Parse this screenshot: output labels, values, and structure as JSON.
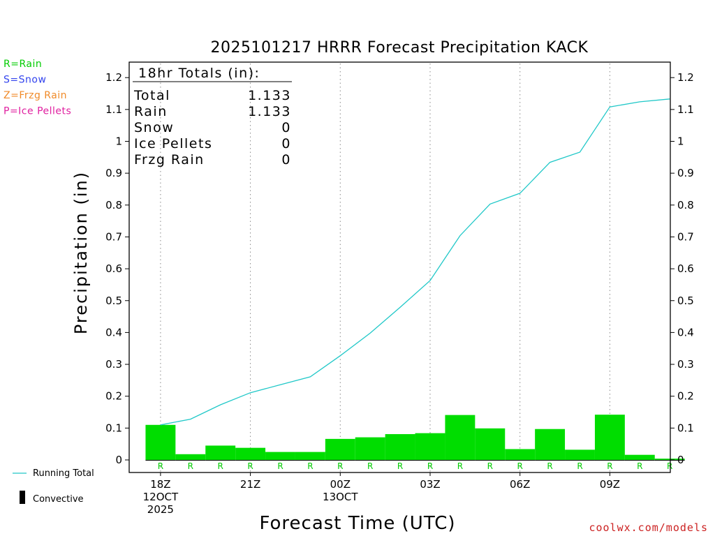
{
  "chart_data": {
    "type": "bar",
    "title": "2025101217 HRRR Forecast Precipitation KACK",
    "xlabel": "Forecast Time (UTC)",
    "ylabel": "Precipitation (in)",
    "ylim": [
      0,
      1.25
    ],
    "y_ticks": [
      "0",
      "0.1",
      "0.2",
      "0.3",
      "0.4",
      "0.5",
      "0.6",
      "0.7",
      "0.8",
      "0.9",
      "1",
      "1.1",
      "1.2"
    ],
    "x_ticks": [
      {
        "hour": 1,
        "lines": [
          "18Z",
          "12OCT",
          "2025"
        ]
      },
      {
        "hour": 4,
        "lines": [
          "21Z"
        ]
      },
      {
        "hour": 7,
        "lines": [
          "00Z",
          "13OCT"
        ]
      },
      {
        "hour": 10,
        "lines": [
          "03Z"
        ]
      },
      {
        "hour": 13,
        "lines": [
          "06Z"
        ]
      },
      {
        "hour": 16,
        "lines": [
          "09Z"
        ]
      }
    ],
    "hourly_precip": [
      0.11,
      0.018,
      0.045,
      0.038,
      0.025,
      0.025,
      0.066,
      0.071,
      0.081,
      0.084,
      0.141,
      0.099,
      0.034,
      0.097,
      0.032,
      0.142,
      0.016,
      0.004
    ],
    "precip_type_labels": [
      "R",
      "R",
      "R",
      "R",
      "R",
      "R",
      "R",
      "R",
      "R",
      "R",
      "R",
      "R",
      "R",
      "R",
      "R",
      "R",
      "R",
      "R"
    ],
    "series": [
      {
        "name": "Running Total",
        "color": "#20c8c8",
        "x": [
          1,
          2,
          3,
          4,
          5,
          6,
          7,
          8,
          9,
          10,
          11,
          12,
          13,
          14,
          15,
          16,
          17,
          18
        ],
        "values": [
          0.11,
          0.128,
          0.173,
          0.211,
          0.236,
          0.261,
          0.327,
          0.398,
          0.479,
          0.563,
          0.704,
          0.803,
          0.837,
          0.934,
          0.966,
          1.108,
          1.124,
          1.133
        ]
      }
    ],
    "totals_box": {
      "heading": "18hr Totals (in):",
      "rows": [
        {
          "label": "Total",
          "value": "1.133"
        },
        {
          "label": "Rain",
          "value": "1.133"
        },
        {
          "label": "Snow",
          "value": "0"
        },
        {
          "label": "Ice Pellets",
          "value": "0"
        },
        {
          "label": "Frzg Rain",
          "value": "0"
        }
      ]
    },
    "type_legend": [
      {
        "text": "R=Rain",
        "color": "#00cc00"
      },
      {
        "text": "S=Snow",
        "color": "#3344ee"
      },
      {
        "text": "Z=Frzg Rain",
        "color": "#f08a28"
      },
      {
        "text": "P=Ice Pellets",
        "color": "#e020a0"
      }
    ],
    "bottom_legend": {
      "line_label": "Running Total",
      "bar_label": "Convective"
    },
    "colors": {
      "bar": "#00dd00",
      "line": "#20c8c8",
      "type_label": "#00cc00",
      "watermark": "#cc2222"
    },
    "grid": "vertical dotted lines at labeled hours",
    "watermark": "coolwx.com/models"
  }
}
